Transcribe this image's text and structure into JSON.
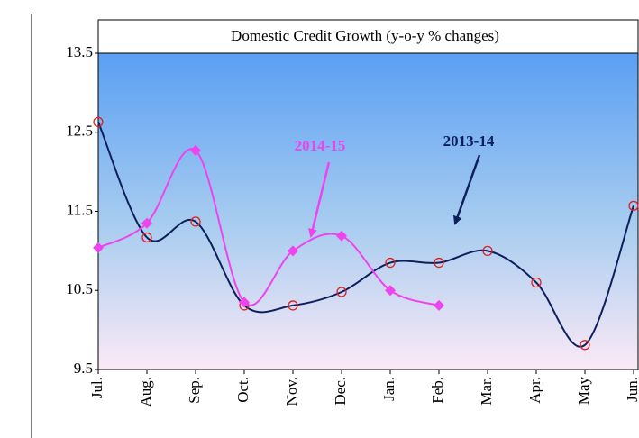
{
  "chart_data": {
    "type": "line",
    "title": "Domestic Credit Growth (y-o-y % changes)",
    "categories": [
      "Jul.",
      "Aug.",
      "Sep.",
      "Oct.",
      "Nov.",
      "Dec.",
      "Jan.",
      "Feb.",
      "Mar.",
      "Apr.",
      "May",
      "Jun."
    ],
    "series": [
      {
        "name": "2013-14",
        "color": "#0d1f5c",
        "marker_color": "#e02020",
        "values": [
          12.63,
          11.17,
          11.37,
          10.31,
          10.31,
          10.48,
          10.85,
          10.85,
          11.0,
          10.6,
          9.81,
          11.57
        ]
      },
      {
        "name": "2014-15",
        "color": "#ee44ee",
        "marker_color": "#ee44ee",
        "values": [
          11.04,
          11.35,
          12.27,
          10.35,
          11.0,
          11.19,
          10.5,
          10.31,
          null,
          null,
          null,
          null
        ]
      }
    ],
    "ylim": [
      9.5,
      13.5
    ],
    "yticks": [
      9.5,
      10.5,
      11.5,
      12.5,
      13.5
    ],
    "grid": false
  }
}
